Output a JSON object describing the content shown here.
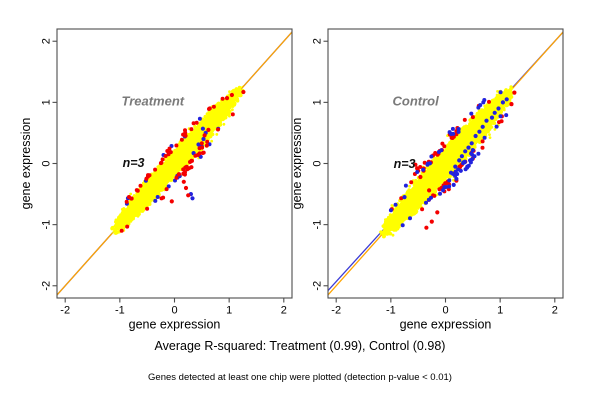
{
  "figure": {
    "caption_line1": "Average R-squared: Treatment (0.99), Control (0.98)",
    "caption_line2": "Genes detected at least one chip were plotted (detection p-value < 0.01)"
  },
  "colors": {
    "background": "#ffffff",
    "cloud": "#FFFF00",
    "outlier_red": "#F40000",
    "outlier_blue": "#2222DD",
    "identity_line": "#FFA500",
    "regression_line": "#3B3BD6",
    "panel_label": "#7a7a7a",
    "annotation": "#111111",
    "box": "#4d4d4d",
    "tick": "#4d4d4d",
    "tick_label": "#000000",
    "axis_title": "#000000"
  },
  "chart_data": [
    {
      "type": "scatter",
      "title": "Treatment",
      "title_xy": [
        -0.97,
        1.02
      ],
      "annotation": "n=3",
      "annotation_xy": [
        -0.95,
        0.02
      ],
      "xlabel": "gene expression",
      "ylabel": "gene expression",
      "xlim": [
        -2.15,
        2.15
      ],
      "ylim": [
        -2.2,
        2.2
      ],
      "xticks": [
        -2,
        -1,
        0,
        1,
        2
      ],
      "yticks": [
        -2,
        -1,
        0,
        1,
        2
      ],
      "r_squared": 0.99,
      "identity_line": {
        "slope": 1,
        "intercept": 0
      },
      "regression_line": {
        "slope": 1.0,
        "intercept": 0.0
      },
      "cloud": {
        "center": [
          0.05,
          0.05
        ],
        "half_length": 1.7,
        "half_width": 0.155,
        "edge_dots": 300,
        "specks": 30,
        "seed": 101
      },
      "outliers": {
        "draw_order": [
          "blue",
          "red"
        ],
        "red": {
          "n_edge": 62,
          "spread": 0.5,
          "seed": 102,
          "extra": [
            [
              0.17,
              -0.3
            ],
            [
              0.21,
              -0.4
            ],
            [
              0.25,
              -0.52
            ],
            [
              0.19,
              -0.18
            ],
            [
              0.46,
              0.25
            ],
            [
              0.5,
              0.33
            ],
            [
              0.43,
              0.14
            ],
            [
              0.55,
              0.46
            ],
            [
              0.31,
              -0.06
            ],
            [
              1.26,
              1.17
            ],
            [
              0.62,
              0.55
            ],
            [
              -0.05,
              -0.62
            ],
            [
              0.96,
              1.07
            ],
            [
              1.05,
              1.12
            ]
          ]
        },
        "blue": {
          "n_edge": 16,
          "spread": 0.6,
          "seed": 103,
          "extra": [
            [
              0.5,
              0.28
            ],
            [
              0.53,
              0.4
            ],
            [
              0.48,
              0.11
            ],
            [
              0.44,
              0.31
            ],
            [
              0.57,
              0.5
            ],
            [
              0.35,
              0.17
            ],
            [
              0.3,
              -0.5
            ],
            [
              0.33,
              -0.57
            ],
            [
              0.52,
              0.57
            ]
          ]
        }
      }
    },
    {
      "type": "scatter",
      "title": "Control",
      "title_xy": [
        -0.97,
        1.02
      ],
      "annotation": "n=3",
      "annotation_xy": [
        -0.95,
        0.0
      ],
      "xlabel": "gene expression",
      "ylabel": "gene expression",
      "xlim": [
        -2.15,
        2.15
      ],
      "ylim": [
        -2.2,
        2.2
      ],
      "xticks": [
        -2,
        -1,
        0,
        1,
        2
      ],
      "yticks": [
        -2,
        -1,
        0,
        1,
        2
      ],
      "r_squared": 0.98,
      "identity_line": {
        "slope": 1,
        "intercept": 0
      },
      "regression_line": {
        "slope": 0.983,
        "intercept": 0.035
      },
      "cloud": {
        "center": [
          0.03,
          0.02
        ],
        "half_length": 1.72,
        "half_width": 0.185,
        "edge_dots": 320,
        "specks": 40,
        "seed": 201
      },
      "outliers": {
        "draw_order": [
          "red",
          "blue"
        ],
        "red": {
          "n_edge": 60,
          "spread": 0.5,
          "seed": 202,
          "extra": [
            [
              -0.55,
              -0.02
            ],
            [
              -0.5,
              -0.12
            ],
            [
              -0.46,
              -0.22
            ],
            [
              -0.52,
              -0.08
            ],
            [
              0.02,
              -0.32
            ],
            [
              0.06,
              -0.42
            ],
            [
              -0.3,
              -0.44
            ],
            [
              0.3,
              -0.02
            ],
            [
              1.26,
              1.16
            ],
            [
              0.5,
              0.08
            ],
            [
              -0.15,
              -0.8
            ],
            [
              -0.35,
              -1.05
            ],
            [
              -0.25,
              -0.95
            ],
            [
              0.2,
              -0.28
            ]
          ]
        },
        "blue": {
          "n_edge": 55,
          "spread": 0.6,
          "seed": 203,
          "extra": [
            [
              0.1,
              -0.15
            ],
            [
              0.18,
              -0.05
            ],
            [
              0.25,
              0.05
            ],
            [
              0.3,
              0.12
            ],
            [
              0.36,
              0.2
            ],
            [
              0.42,
              0.26
            ],
            [
              0.48,
              0.33
            ],
            [
              0.55,
              0.45
            ],
            [
              0.62,
              0.52
            ],
            [
              0.28,
              -0.12
            ],
            [
              0.35,
              0.02
            ],
            [
              0.5,
              0.22
            ],
            [
              0.68,
              0.6
            ],
            [
              0.75,
              0.7
            ],
            [
              0.45,
              0.05
            ],
            [
              0.2,
              -0.25
            ],
            [
              0.85,
              0.75
            ],
            [
              0.9,
              0.83
            ],
            [
              0.97,
              0.9
            ],
            [
              0.4,
              -0.05
            ],
            [
              0.15,
              -0.35
            ],
            [
              1.05,
              1.0
            ],
            [
              1.12,
              1.05
            ],
            [
              -0.75,
              -0.55
            ]
          ]
        }
      }
    }
  ]
}
